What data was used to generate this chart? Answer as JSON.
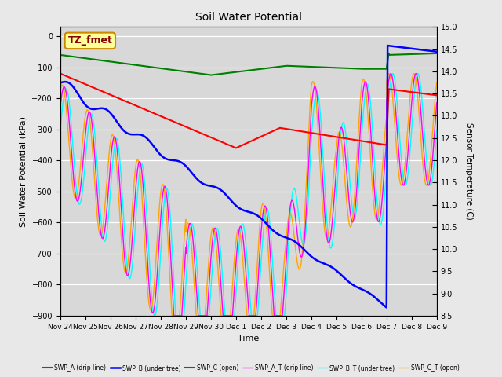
{
  "title": "Soil Water Potential",
  "ylabel_left": "Soil Water Potential (kPa)",
  "ylabel_right": "Sensor Temperature (C)",
  "xlabel": "Time",
  "ylim_left": [
    -900,
    30
  ],
  "ylim_right": [
    8.5,
    15.0
  ],
  "yticks_left": [
    0,
    -100,
    -200,
    -300,
    -400,
    -500,
    -600,
    -700,
    -800,
    -900
  ],
  "yticks_right": [
    8.5,
    9.0,
    9.5,
    10.0,
    10.5,
    11.0,
    11.5,
    12.0,
    12.5,
    13.0,
    13.5,
    14.0,
    14.5,
    15.0
  ],
  "fig_bg_color": "#e8e8e8",
  "plot_bg_color": "#d8d8d8",
  "grid_color": "#ffffff",
  "annotation_box": "TZ_fmet",
  "annotation_box_color": "#ffff99",
  "annotation_box_edge": "#cc8800",
  "tick_positions": [
    0,
    24,
    48,
    72,
    96,
    120,
    144,
    168,
    192,
    216,
    240,
    264,
    288,
    312,
    336,
    360
  ],
  "tick_labels": [
    "Nov 24",
    "Nov 25",
    "Nov 26",
    "Nov 27",
    "Nov 28",
    "Nov 29",
    "Nov 30",
    "Dec 1",
    "Dec 2",
    "Dec 3",
    "Dec 4",
    "Dec 5",
    "Dec 6",
    "Dec 7",
    "Dec 8",
    "Dec 9"
  ],
  "legend_items": [
    {
      "label": "SWP_A (drip line)",
      "color": "red"
    },
    {
      "label": "SWP_B (under tree)",
      "color": "blue"
    },
    {
      "label": "SWP_C (open)",
      "color": "green"
    },
    {
      "label": "SWP_A_T (drip line)",
      "color": "magenta"
    },
    {
      "label": "SWP_B_T (under tree)",
      "color": "cyan"
    },
    {
      "label": "SWP_C_T (open)",
      "color": "orange"
    }
  ]
}
